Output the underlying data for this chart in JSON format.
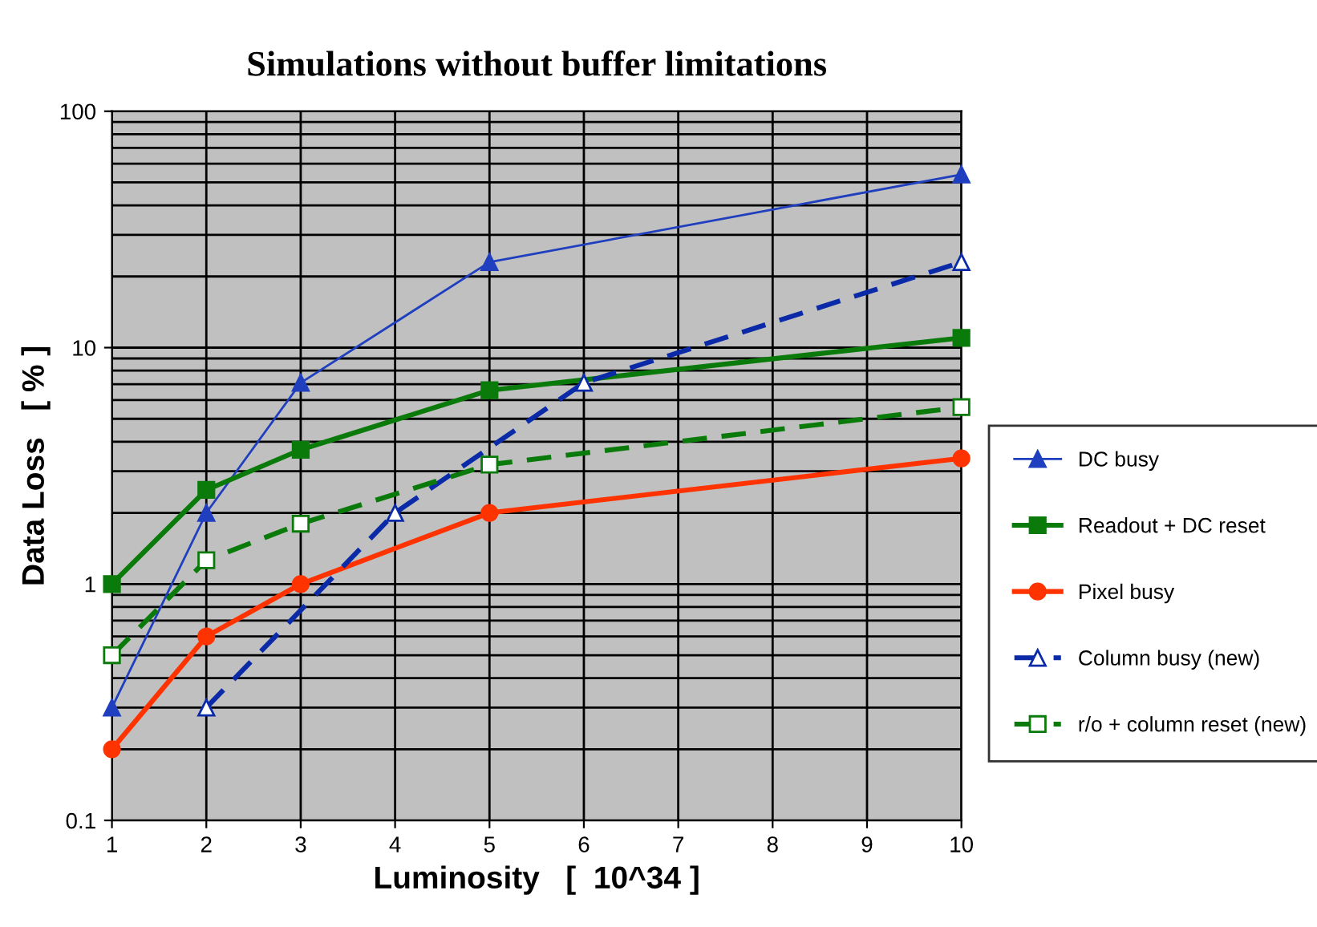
{
  "chart_data": {
    "type": "line",
    "title": "Simulations without buffer limitations",
    "xlabel": "Luminosity   [  10^34 ]",
    "ylabel": "Data Loss   [ % ]",
    "log": "y",
    "xlim": [
      1,
      10
    ],
    "xticks": [
      1,
      2,
      3,
      4,
      5,
      6,
      7,
      8,
      9,
      10
    ],
    "ylim": [
      0.1,
      100
    ],
    "yticks": [
      0.1,
      1,
      10,
      100
    ],
    "grid": true,
    "legend": "right",
    "series": [
      {
        "name": "DC busy",
        "color": "#1f3fbf",
        "marker": "triangle",
        "line_style": "solid",
        "x": [
          1,
          2,
          3,
          5,
          10
        ],
        "values": [
          0.3,
          2.0,
          7.1,
          23,
          54
        ]
      },
      {
        "name": "Readout + DC reset",
        "color": "#0a7a0a",
        "marker": "square",
        "line_style": "solid",
        "x": [
          1,
          2,
          3,
          5,
          10
        ],
        "values": [
          1.0,
          2.5,
          3.7,
          6.6,
          11
        ]
      },
      {
        "name": "Pixel busy",
        "color": "#ff3300",
        "marker": "circle",
        "line_style": "solid",
        "x": [
          1,
          2,
          3,
          5,
          10
        ],
        "values": [
          0.2,
          0.6,
          1.0,
          2.0,
          3.4
        ]
      },
      {
        "name": "Column busy (new)",
        "color": "#0a2aa8",
        "marker": "triangle",
        "line_style": "dashed",
        "x": [
          2,
          4,
          6,
          10
        ],
        "values": [
          0.3,
          2.0,
          7.1,
          23
        ]
      },
      {
        "name": "r/o + column reset (new)",
        "color": "#0a7a0a",
        "marker": "square",
        "line_style": "dashed",
        "x": [
          1,
          2,
          3,
          5,
          10
        ],
        "values": [
          0.5,
          1.26,
          1.8,
          3.2,
          5.6
        ]
      }
    ]
  }
}
